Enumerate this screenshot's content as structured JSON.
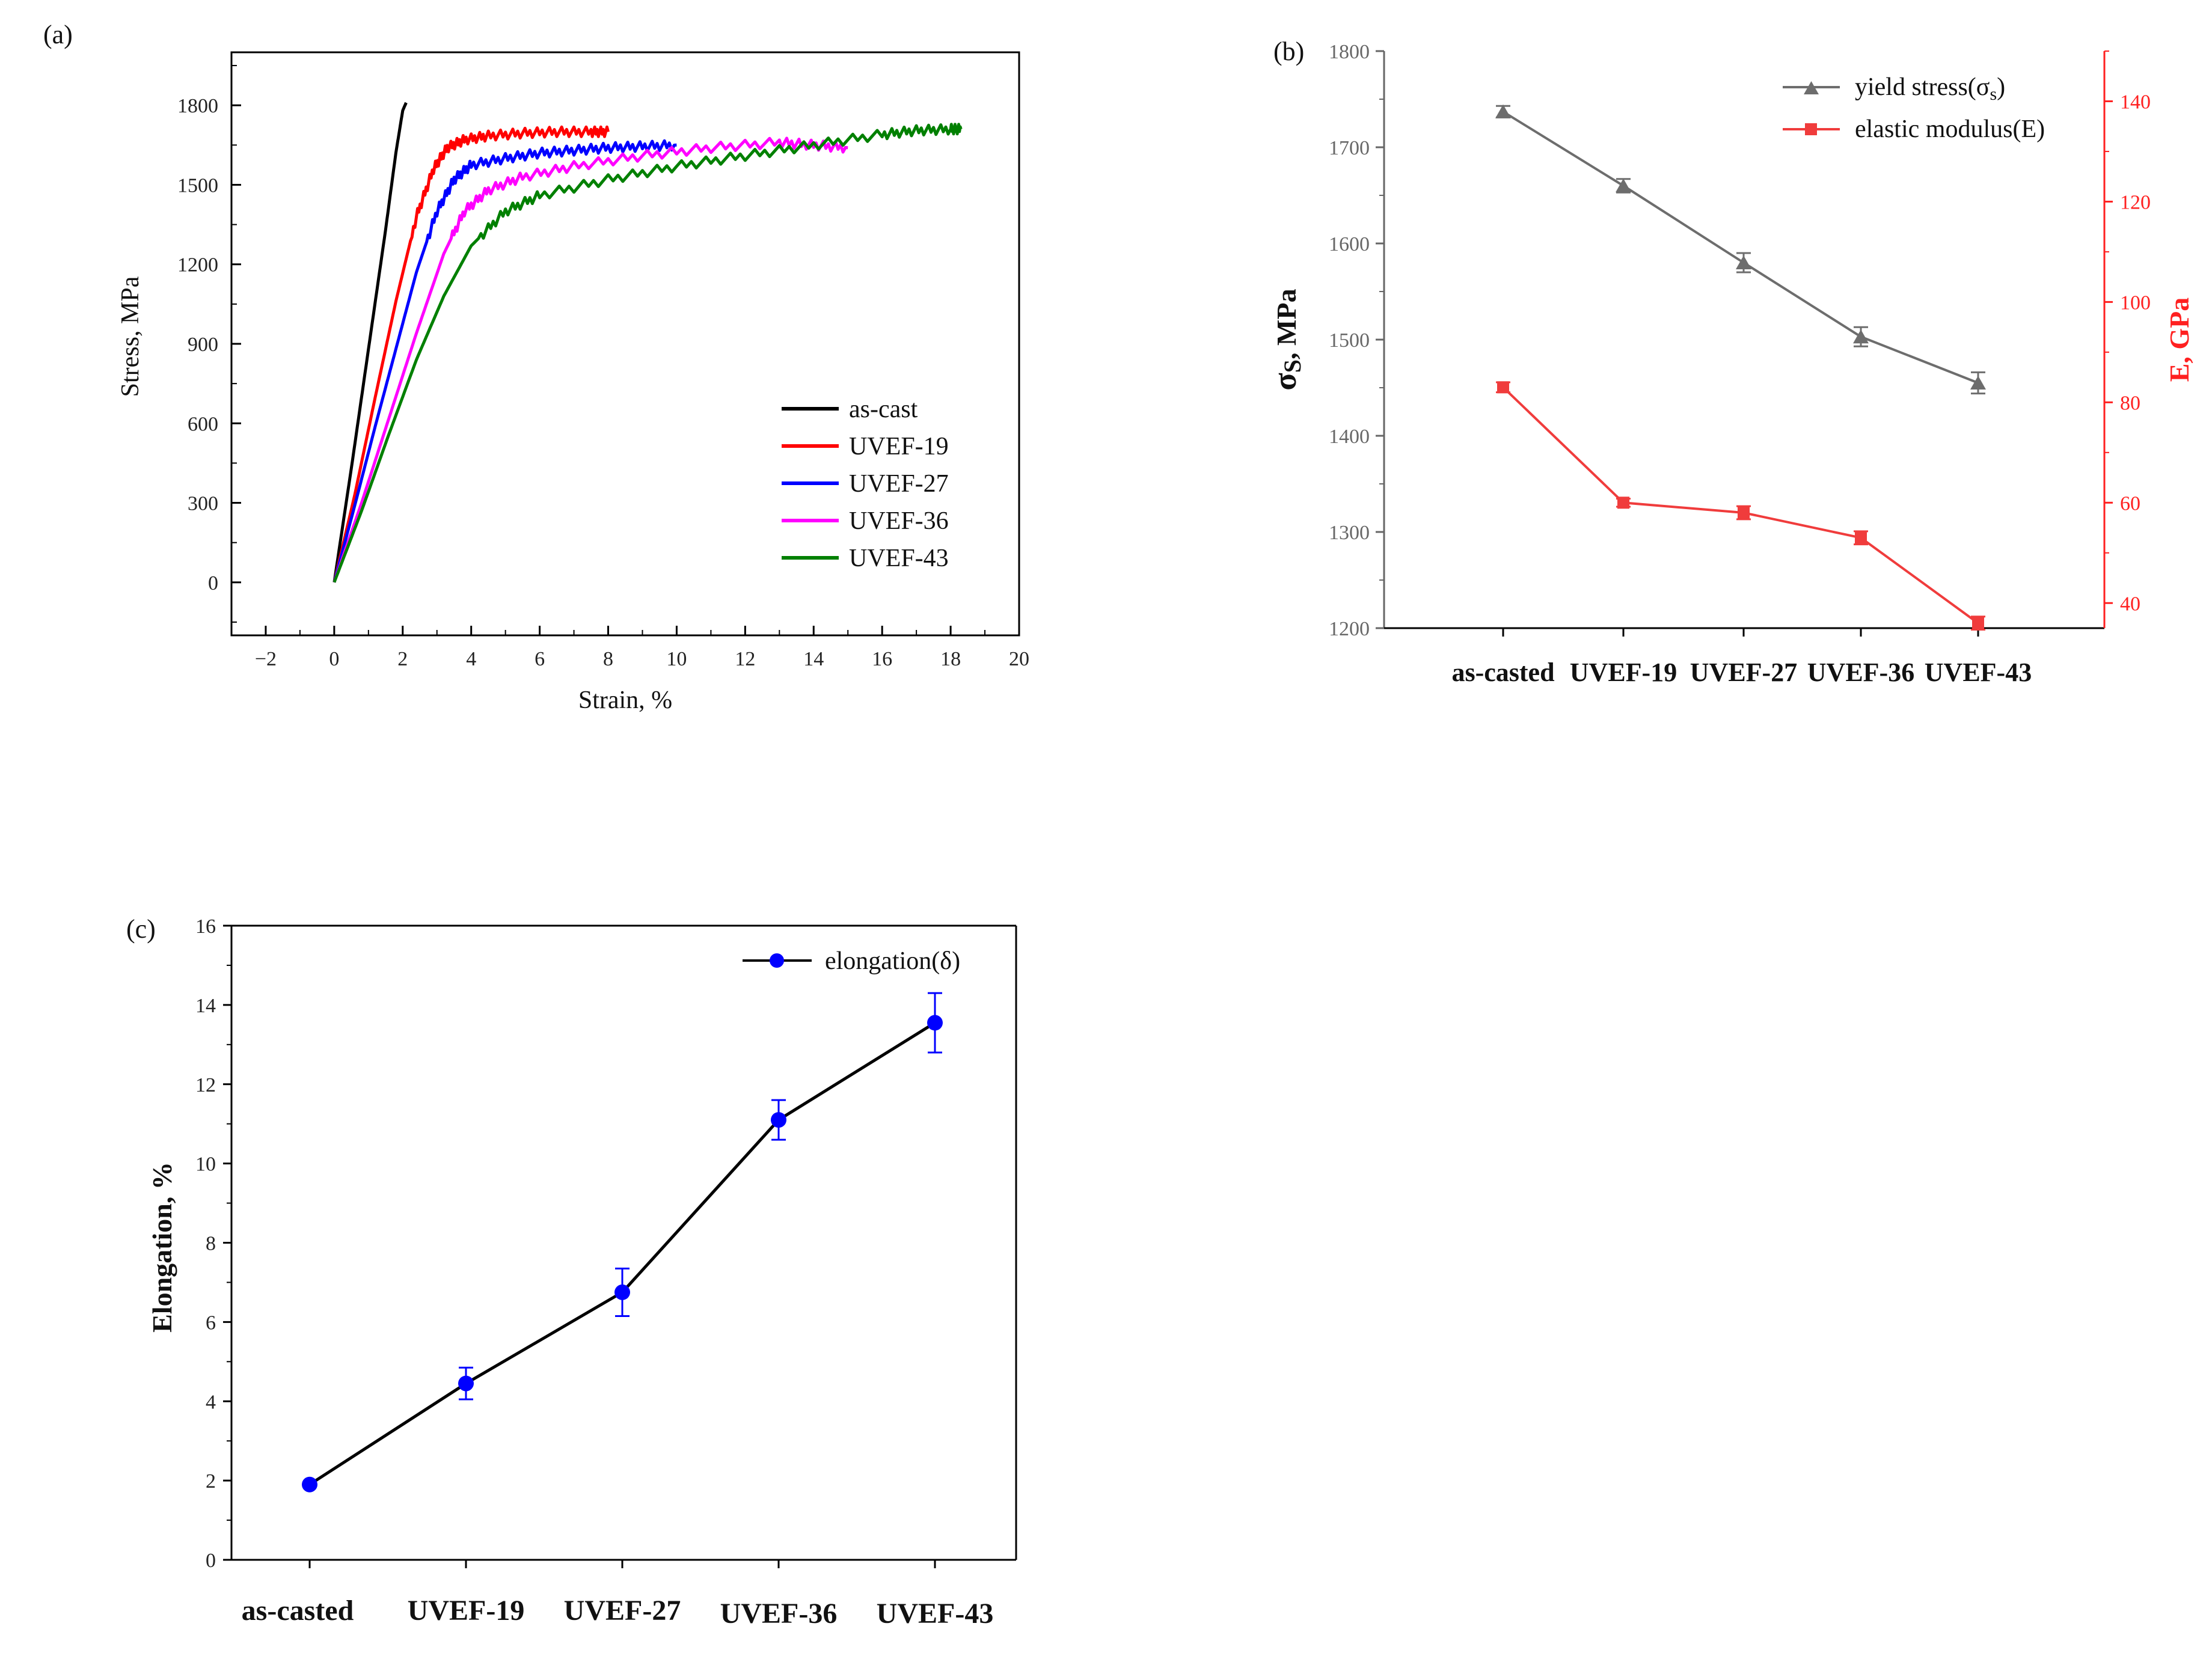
{
  "chart_data": [
    {
      "panel": "(a)",
      "type": "line",
      "xlabel": "Strain, %",
      "ylabel": "Stress, MPa",
      "xlim": [
        -3,
        20
      ],
      "ylim": [
        -200,
        2000
      ],
      "xticks": [
        -2,
        0,
        2,
        4,
        6,
        8,
        10,
        12,
        14,
        16,
        18,
        20
      ],
      "yticks": [
        0,
        300,
        600,
        900,
        1200,
        1500,
        1800
      ],
      "legend_position": "bottom-right",
      "series": [
        {
          "name": "as-cast",
          "color": "#000000",
          "x": [
            0,
            0.5,
            1.0,
            1.5,
            1.8,
            2.0,
            2.1
          ],
          "y": [
            0,
            430,
            880,
            1330,
            1620,
            1780,
            1810
          ]
        },
        {
          "name": "UVEF-19",
          "color": "#ff0000",
          "x": [
            0,
            0.6,
            1.2,
            1.8,
            2.4,
            2.9,
            3.3,
            3.8,
            4.5,
            5.5,
            6.5,
            7.5,
            8.0
          ],
          "y": [
            0,
            330,
            700,
            1060,
            1380,
            1560,
            1640,
            1670,
            1685,
            1695,
            1700,
            1700,
            1700
          ]
        },
        {
          "name": "UVEF-27",
          "color": "#0000ff",
          "x": [
            0,
            0.6,
            1.2,
            1.8,
            2.4,
            3.0,
            3.5,
            4.0,
            5.0,
            6.0,
            7.0,
            8.0,
            9.0,
            10.0
          ],
          "y": [
            0,
            290,
            590,
            880,
            1170,
            1400,
            1520,
            1575,
            1600,
            1620,
            1630,
            1640,
            1645,
            1650
          ]
        },
        {
          "name": "UVEF-36",
          "color": "#ff00ff",
          "x": [
            0,
            0.8,
            1.6,
            2.4,
            3.2,
            3.8,
            4.5,
            5.5,
            7.0,
            9.0,
            11.0,
            13.0,
            14.0,
            15.0
          ],
          "y": [
            0,
            300,
            620,
            940,
            1240,
            1400,
            1480,
            1530,
            1570,
            1610,
            1640,
            1660,
            1650,
            1640
          ]
        },
        {
          "name": "UVEF-43",
          "color": "#008000",
          "x": [
            0,
            0.8,
            1.6,
            2.4,
            3.2,
            4.0,
            5.0,
            6.0,
            8.0,
            10.0,
            12.0,
            14.0,
            16.0,
            17.0,
            18.0,
            18.3
          ],
          "y": [
            0,
            270,
            560,
            840,
            1080,
            1270,
            1400,
            1460,
            1520,
            1570,
            1610,
            1650,
            1690,
            1705,
            1710,
            1710
          ]
        }
      ]
    },
    {
      "panel": "(b)",
      "type": "line",
      "categories": [
        "as-casted",
        "UVEF-19",
        "UVEF-27",
        "UVEF-36",
        "UVEF-43"
      ],
      "ylabel_left_main": "σ",
      "ylabel_left_sub": "S",
      "ylabel_left_rest": ", MPa",
      "ylabel_right": "E, GPa",
      "ylim_left": [
        1200,
        1800
      ],
      "ylim_right": [
        35,
        150
      ],
      "yticks_left": [
        1200,
        1300,
        1400,
        1500,
        1600,
        1700,
        1800
      ],
      "yticks_right": [
        40,
        60,
        80,
        100,
        120,
        140
      ],
      "legend_position": "top-right",
      "series": [
        {
          "name_main": "yield stress(σ",
          "name_sub": "s",
          "name_end": ")",
          "axis": "left",
          "color": "#6d6d6d",
          "marker": "triangle",
          "values": [
            1737,
            1660,
            1580,
            1503,
            1455
          ],
          "errors": [
            6,
            7,
            10,
            10,
            11
          ]
        },
        {
          "name": "elastic modulus(E)",
          "axis": "right",
          "color": "#f03c3c",
          "marker": "square",
          "values": [
            83,
            60,
            58,
            53,
            36
          ],
          "errors": [
            1,
            0.8,
            1.3,
            1.3,
            1.3
          ]
        }
      ]
    },
    {
      "panel": "(c)",
      "type": "line",
      "categories": [
        "as-casted",
        "UVEF-19",
        "UVEF-27",
        "UVEF-36",
        "UVEF-43"
      ],
      "ylabel": "Elongation, %",
      "ylim": [
        0,
        16
      ],
      "yticks": [
        0,
        2,
        4,
        6,
        8,
        10,
        12,
        14,
        16
      ],
      "legend_position": "top-right",
      "series": [
        {
          "name": "elongation(δ)",
          "color": "#0000ff",
          "line_color": "#000000",
          "marker": "circle",
          "values": [
            1.9,
            4.45,
            6.75,
            11.1,
            13.55
          ],
          "errors": [
            0.05,
            0.4,
            0.6,
            0.5,
            0.75
          ]
        }
      ]
    }
  ]
}
